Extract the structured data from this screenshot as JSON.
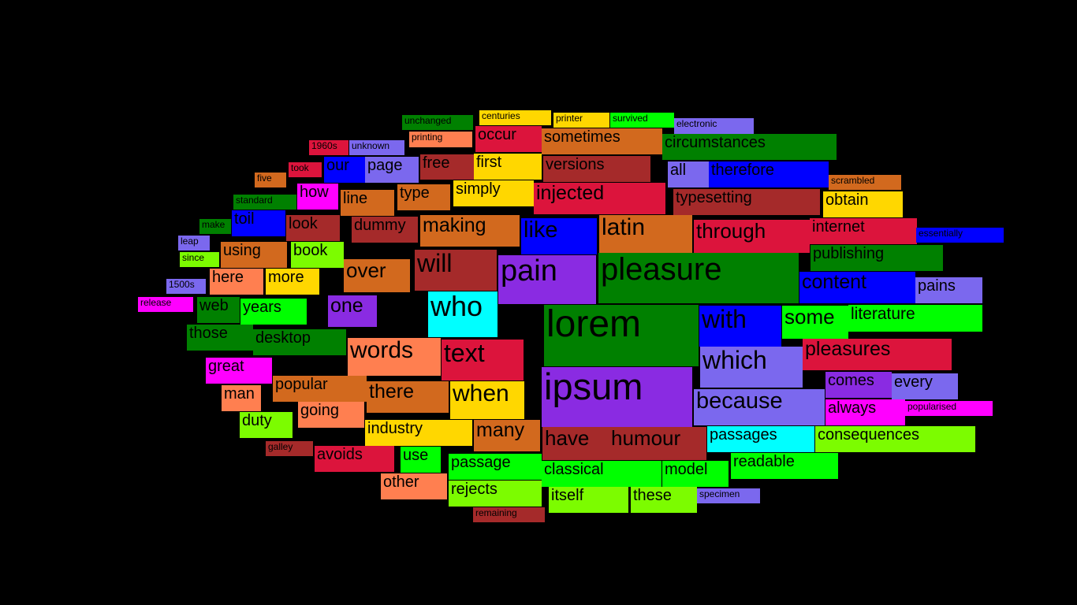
{
  "words": [
    {
      "text": "unchanged",
      "color": "green"
    },
    {
      "text": "centuries",
      "color": "gold"
    },
    {
      "text": "printer",
      "color": "gold"
    },
    {
      "text": "survived",
      "color": "lime"
    },
    {
      "text": "electronic",
      "color": "mediumslateblue"
    },
    {
      "text": "1960s",
      "color": "crimson"
    },
    {
      "text": "unknown",
      "color": "mediumslateblue"
    },
    {
      "text": "printing",
      "color": "coral"
    },
    {
      "text": "occur",
      "color": "crimson"
    },
    {
      "text": "sometimes",
      "color": "chocolate"
    },
    {
      "text": "circumstances",
      "color": "green"
    },
    {
      "text": "five",
      "color": "chocolate"
    },
    {
      "text": "took",
      "color": "crimson"
    },
    {
      "text": "our",
      "color": "blue"
    },
    {
      "text": "page",
      "color": "mediumslateblue"
    },
    {
      "text": "free",
      "color": "brown"
    },
    {
      "text": "first",
      "color": "gold"
    },
    {
      "text": "versions",
      "color": "brown"
    },
    {
      "text": "all",
      "color": "mediumslateblue"
    },
    {
      "text": "therefore",
      "color": "blue"
    },
    {
      "text": "scrambled",
      "color": "chocolate"
    },
    {
      "text": "standard",
      "color": "green"
    },
    {
      "text": "how",
      "color": "magenta"
    },
    {
      "text": "line",
      "color": "chocolate"
    },
    {
      "text": "type",
      "color": "chocolate"
    },
    {
      "text": "simply",
      "color": "gold"
    },
    {
      "text": "injected",
      "color": "crimson"
    },
    {
      "text": "typesetting",
      "color": "brown"
    },
    {
      "text": "obtain",
      "color": "gold"
    },
    {
      "text": "make",
      "color": "green"
    },
    {
      "text": "toil",
      "color": "blue"
    },
    {
      "text": "look",
      "color": "brown"
    },
    {
      "text": "dummy",
      "color": "brown"
    },
    {
      "text": "making",
      "color": "chocolate"
    },
    {
      "text": "like",
      "color": "blue"
    },
    {
      "text": "latin",
      "color": "chocolate"
    },
    {
      "text": "through",
      "color": "crimson"
    },
    {
      "text": "internet",
      "color": "crimson"
    },
    {
      "text": "essentially",
      "color": "blue"
    },
    {
      "text": "leap",
      "color": "mediumslateblue"
    },
    {
      "text": "since",
      "color": "lawngreen"
    },
    {
      "text": "using",
      "color": "chocolate"
    },
    {
      "text": "book",
      "color": "lawngreen"
    },
    {
      "text": "over",
      "color": "chocolate"
    },
    {
      "text": "will",
      "color": "brown"
    },
    {
      "text": "pain",
      "color": "blueviolet"
    },
    {
      "text": "pleasure",
      "color": "green"
    },
    {
      "text": "publishing",
      "color": "green"
    },
    {
      "text": "1500s",
      "color": "mediumslateblue"
    },
    {
      "text": "here",
      "color": "coral"
    },
    {
      "text": "more",
      "color": "gold"
    },
    {
      "text": "content",
      "color": "blue"
    },
    {
      "text": "pains",
      "color": "mediumslateblue"
    },
    {
      "text": "release",
      "color": "magenta"
    },
    {
      "text": "web",
      "color": "green"
    },
    {
      "text": "years",
      "color": "lime"
    },
    {
      "text": "one",
      "color": "blueviolet"
    },
    {
      "text": "who",
      "color": "cyan"
    },
    {
      "text": "lorem",
      "color": "green"
    },
    {
      "text": "with",
      "color": "blue"
    },
    {
      "text": "some",
      "color": "lime"
    },
    {
      "text": "literature",
      "color": "lime"
    },
    {
      "text": "those",
      "color": "green"
    },
    {
      "text": "desktop",
      "color": "green"
    },
    {
      "text": "words",
      "color": "coral"
    },
    {
      "text": "text",
      "color": "crimson"
    },
    {
      "text": "pleasures",
      "color": "crimson"
    },
    {
      "text": "which",
      "color": "mediumslateblue"
    },
    {
      "text": "great",
      "color": "magenta"
    },
    {
      "text": "popular",
      "color": "chocolate"
    },
    {
      "text": "there",
      "color": "chocolate"
    },
    {
      "text": "when",
      "color": "gold"
    },
    {
      "text": "ipsum",
      "color": "blueviolet"
    },
    {
      "text": "comes",
      "color": "blueviolet"
    },
    {
      "text": "every",
      "color": "mediumslateblue"
    },
    {
      "text": "man",
      "color": "coral"
    },
    {
      "text": "because",
      "color": "mediumslateblue"
    },
    {
      "text": "always",
      "color": "magenta"
    },
    {
      "text": "popularised",
      "color": "magenta"
    },
    {
      "text": "going",
      "color": "coral"
    },
    {
      "text": "duty",
      "color": "lawngreen"
    },
    {
      "text": "industry",
      "color": "gold"
    },
    {
      "text": "many",
      "color": "chocolate"
    },
    {
      "text": "have",
      "color": "brown"
    },
    {
      "text": "humour",
      "color": "brown"
    },
    {
      "text": "passages",
      "color": "cyan"
    },
    {
      "text": "consequences",
      "color": "lawngreen"
    },
    {
      "text": "galley",
      "color": "brown"
    },
    {
      "text": "avoids",
      "color": "crimson"
    },
    {
      "text": "use",
      "color": "lime"
    },
    {
      "text": "passage",
      "color": "lime"
    },
    {
      "text": "readable",
      "color": "lime"
    },
    {
      "text": "classical",
      "color": "lime"
    },
    {
      "text": "model",
      "color": "lime"
    },
    {
      "text": "other",
      "color": "coral"
    },
    {
      "text": "rejects",
      "color": "lawngreen"
    },
    {
      "text": "itself",
      "color": "lawngreen"
    },
    {
      "text": "these",
      "color": "lawngreen"
    },
    {
      "text": "specimen",
      "color": "mediumslateblue"
    },
    {
      "text": "remaining",
      "color": "brown"
    }
  ]
}
